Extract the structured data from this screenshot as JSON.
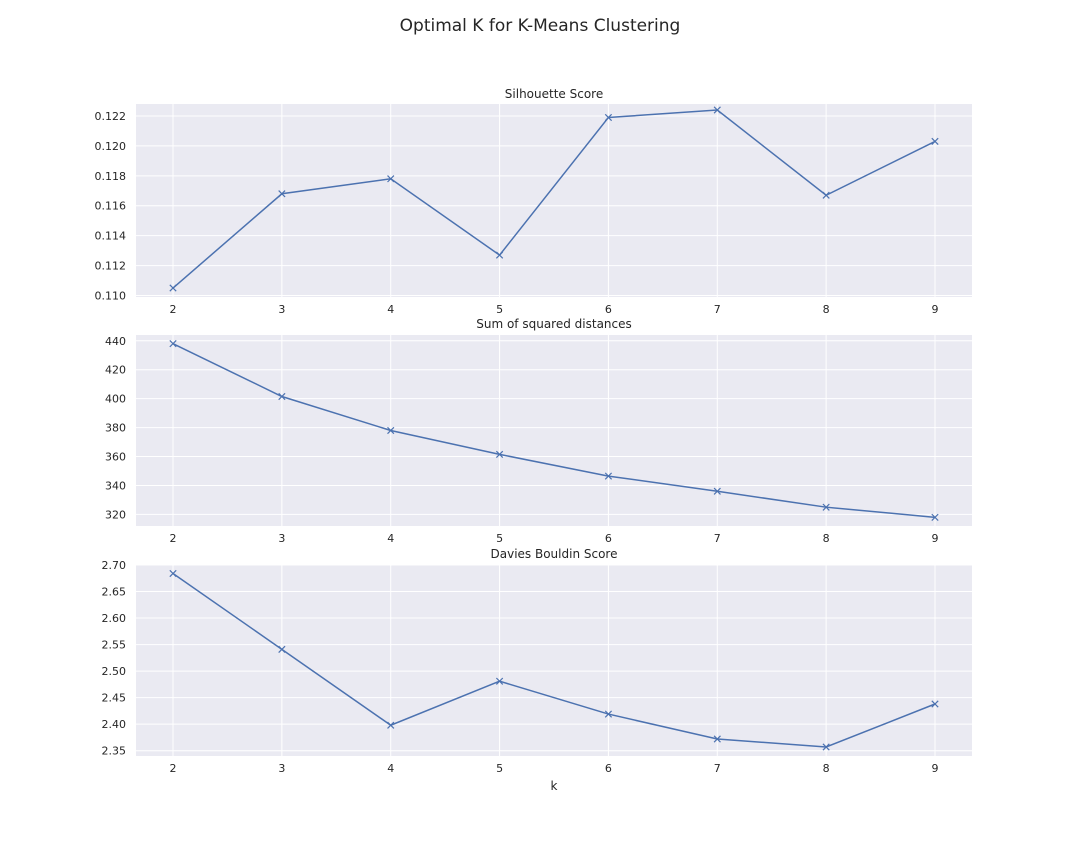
{
  "figure": {
    "title": "Optimal K for K-Means Clustering",
    "line_color": "#4c72b0",
    "background": "#eaeaf2",
    "grid_color": "#ffffff"
  },
  "chart_data": [
    {
      "type": "line",
      "title": "Silhouette Score",
      "xlabel": "",
      "ylabel": "",
      "x": [
        2,
        3,
        4,
        5,
        6,
        7,
        8,
        9
      ],
      "y": [
        0.1105,
        0.1168,
        0.1178,
        0.1127,
        0.1219,
        0.1224,
        0.1167,
        0.1203
      ],
      "yticks": [
        "0.110",
        "0.112",
        "0.114",
        "0.116",
        "0.118",
        "0.120",
        "0.122"
      ],
      "ylim": [
        0.1099,
        0.1228
      ],
      "xlim": [
        1.66,
        9.34
      ],
      "marker": "x",
      "grid": true
    },
    {
      "type": "line",
      "title": "Sum of squared distances",
      "xlabel": "",
      "ylabel": "",
      "x": [
        2,
        3,
        4,
        5,
        6,
        7,
        8,
        9
      ],
      "y": [
        438,
        401.5,
        378,
        361.5,
        346.5,
        336,
        325,
        318
      ],
      "yticks": [
        "320",
        "340",
        "360",
        "380",
        "400",
        "420",
        "440"
      ],
      "ylim": [
        312,
        444
      ],
      "xlim": [
        1.66,
        9.34
      ],
      "marker": "x",
      "grid": true
    },
    {
      "type": "line",
      "title": "Davies Bouldin Score",
      "xlabel": "k",
      "ylabel": "",
      "x": [
        2,
        3,
        4,
        5,
        6,
        7,
        8,
        9
      ],
      "y": [
        2.684,
        2.541,
        2.398,
        2.481,
        2.419,
        2.372,
        2.357,
        2.438
      ],
      "yticks": [
        "2.35",
        "2.40",
        "2.45",
        "2.50",
        "2.55",
        "2.60",
        "2.65",
        "2.70"
      ],
      "ylim": [
        2.34,
        2.7
      ],
      "xlim": [
        1.66,
        9.34
      ],
      "marker": "x",
      "grid": true
    }
  ]
}
